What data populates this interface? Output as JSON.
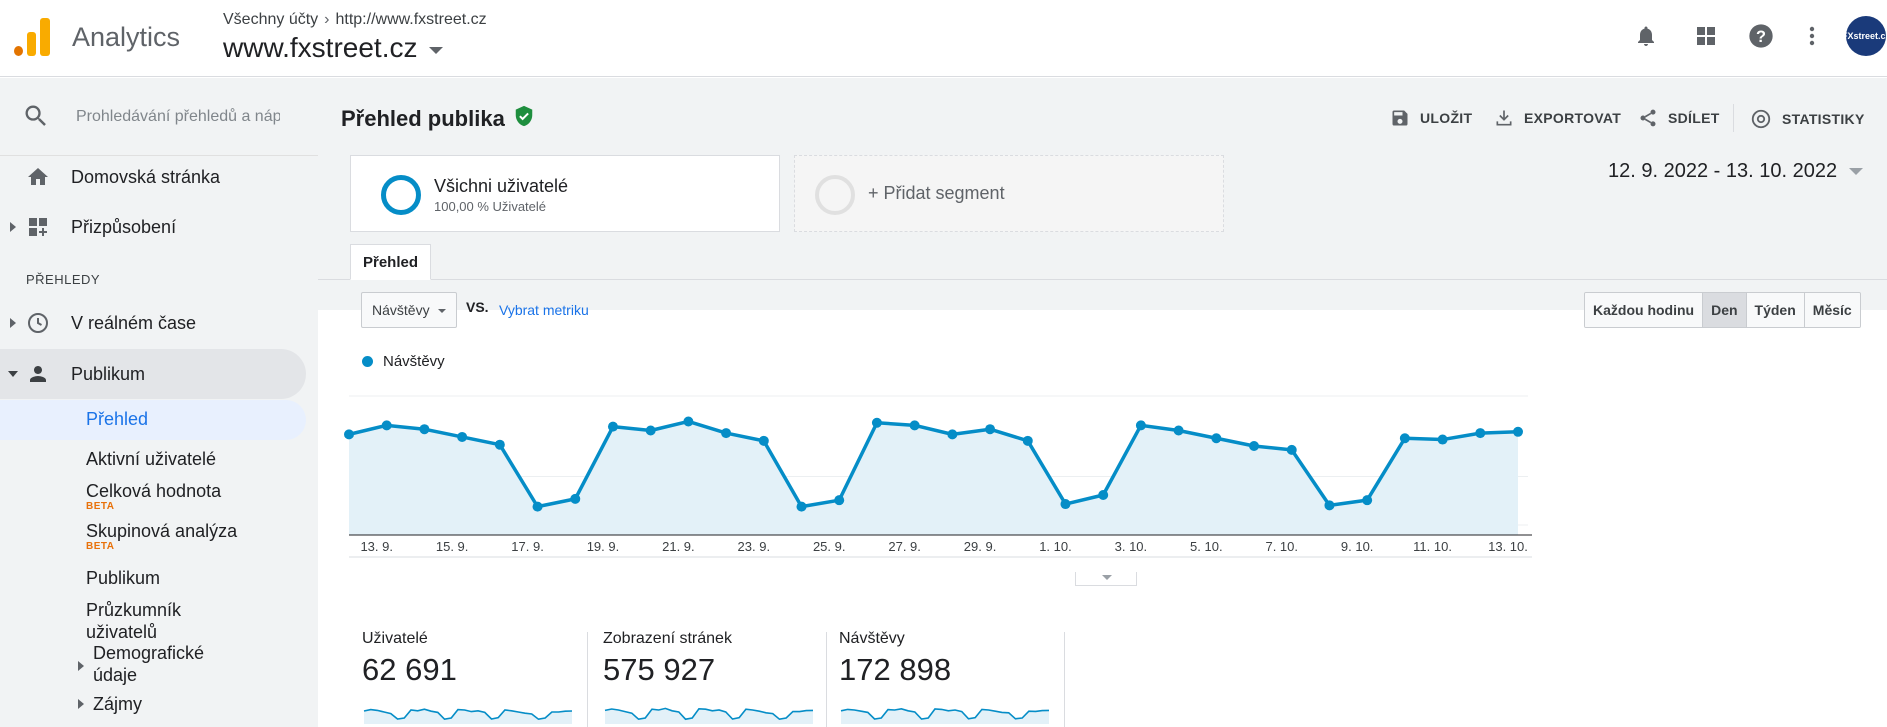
{
  "header": {
    "brand": "Analytics",
    "breadcrumb_account": "Všechny účty",
    "breadcrumb_url": "http://www.fxstreet.cz",
    "property": "www.fxstreet.cz",
    "avatar_text": "FXstreet.cz",
    "icons": [
      "bell-icon",
      "apps-grid-icon",
      "help-icon",
      "more-vert-icon"
    ]
  },
  "sidebar": {
    "search_placeholder": "Prohledávání přehledů a náp",
    "home": "Domovská stránka",
    "customization": "Přizpůsobení",
    "section_reports": "PŘEHLEDY",
    "realtime": "V reálném čase",
    "audience": "Publikum",
    "sub": {
      "overview": "Přehled",
      "active_users": "Aktivní uživatelé",
      "lifetime_value": "Celková hodnota",
      "cohort": "Skupinová analýza",
      "beta": "BETA",
      "audiences": "Publikum",
      "user_explorer": "Průzkumník uživatelů",
      "demographics": "Demografické údaje",
      "interests": "Zájmy"
    }
  },
  "main": {
    "title": "Přehled publika",
    "actions": {
      "save": "ULOŽIT",
      "export": "EXPORTOVAT",
      "share": "SDÍLET",
      "insights": "STATISTIKY"
    },
    "segment": {
      "name": "Všichni uživatelé",
      "pct": "100,00 % Uživatelé",
      "add": "+ Přidat segment"
    },
    "date_range": "12. 9. 2022 - 13. 10. 2022",
    "tab": "Přehled",
    "metric": "Návštěvy",
    "vs": "VS.",
    "pick_metric": "Vybrat metriku",
    "granularity": [
      {
        "label": "Každou hodinu",
        "active": false
      },
      {
        "label": "Den",
        "active": true
      },
      {
        "label": "Týden",
        "active": false
      },
      {
        "label": "Měsíc",
        "active": false
      }
    ],
    "legend": "Návštěvy",
    "scorecards": [
      {
        "label": "Uživatelé",
        "value": "62 691"
      },
      {
        "label": "Zobrazení stránek",
        "value": "575 927"
      },
      {
        "label": "Návštěvy",
        "value": "172 898"
      }
    ]
  },
  "colors": {
    "series": "#058dc7",
    "area": "#e3f1f8",
    "accent_link": "#1a73e8"
  },
  "chart_data": {
    "type": "area",
    "series": [
      {
        "name": "Návštěvy",
        "values": [
          0.78,
          0.85,
          0.82,
          0.76,
          0.7,
          0.22,
          0.28,
          0.84,
          0.81,
          0.88,
          0.79,
          0.73,
          0.22,
          0.27,
          0.87,
          0.85,
          0.78,
          0.82,
          0.73,
          0.24,
          0.31,
          0.85,
          0.81,
          0.75,
          0.69,
          0.66,
          0.23,
          0.27,
          0.75,
          0.74,
          0.79,
          0.8
        ]
      }
    ],
    "x_tick_labels": [
      "13. 9.",
      "15. 9.",
      "17. 9.",
      "19. 9.",
      "21. 9.",
      "23. 9.",
      "25. 9.",
      "27. 9.",
      "29. 9.",
      "1. 10.",
      "3. 10.",
      "5. 10.",
      "7. 10.",
      "9. 10.",
      "11. 10.",
      "13. 10."
    ],
    "x_tick_index": [
      1,
      3,
      5,
      7,
      9,
      11,
      13,
      15,
      17,
      19,
      21,
      23,
      25,
      27,
      29,
      31
    ],
    "ylim": [
      0,
      1
    ],
    "grid": true,
    "legend": "top-left"
  },
  "sparklines": [
    [
      0.55,
      0.62,
      0.58,
      0.5,
      0.42,
      0.15,
      0.2,
      0.6,
      0.56,
      0.64,
      0.54,
      0.48,
      0.14,
      0.2,
      0.62,
      0.6,
      0.52,
      0.56,
      0.48,
      0.15,
      0.22,
      0.6,
      0.56,
      0.5,
      0.44,
      0.4,
      0.14,
      0.2,
      0.5,
      0.5,
      0.54,
      0.55
    ],
    [
      0.58,
      0.65,
      0.6,
      0.52,
      0.44,
      0.14,
      0.2,
      0.64,
      0.6,
      0.68,
      0.56,
      0.5,
      0.14,
      0.2,
      0.66,
      0.64,
      0.56,
      0.6,
      0.5,
      0.15,
      0.22,
      0.64,
      0.6,
      0.54,
      0.46,
      0.42,
      0.14,
      0.2,
      0.52,
      0.52,
      0.57,
      0.58
    ],
    [
      0.56,
      0.63,
      0.6,
      0.54,
      0.48,
      0.15,
      0.2,
      0.62,
      0.6,
      0.66,
      0.56,
      0.5,
      0.15,
      0.2,
      0.65,
      0.63,
      0.56,
      0.6,
      0.52,
      0.16,
      0.22,
      0.63,
      0.6,
      0.54,
      0.48,
      0.46,
      0.16,
      0.2,
      0.54,
      0.53,
      0.57,
      0.58
    ]
  ]
}
